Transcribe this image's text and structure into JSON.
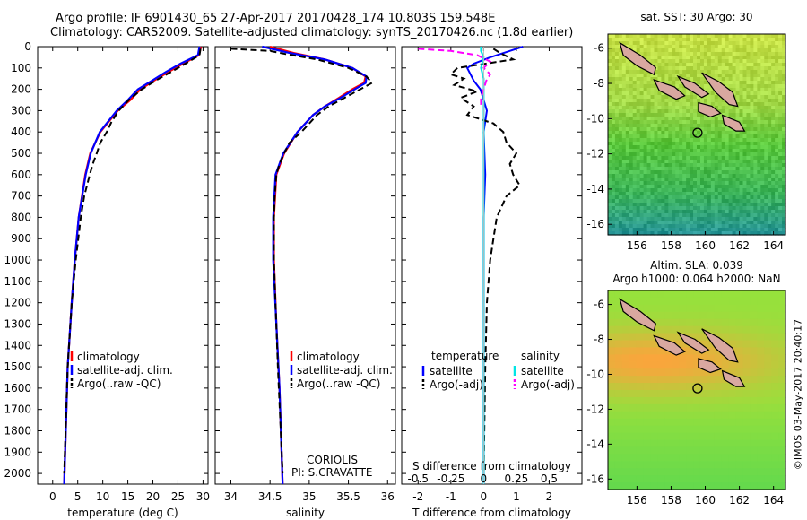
{
  "header": {
    "line1": "Argo profile: IF 6901430_65 27-Apr-2017 20170428_174 10.803S 159.548E",
    "line2": "Climatology: CARS2009. Satellite-adjusted climatology: synTS_20170426.nc (1.8d earlier)"
  },
  "stamp": "©IMOS 03-May-2017 20:40:17",
  "colors": {
    "climatology": "#ff0000",
    "satellite": "#0000ff",
    "argo": "#000000",
    "salinity_satellite": "#00e5e5",
    "salinity_argo": "#ff00ff",
    "land": "#d9a8a0"
  },
  "chart_data": [
    {
      "type": "line",
      "xlabel": "temperature (deg C)",
      "ylabel": "",
      "xlim": [
        -3,
        31
      ],
      "ylim": [
        2050,
        0
      ],
      "xticks": [
        "0",
        "5",
        "10",
        "15",
        "20",
        "25",
        "30"
      ],
      "yticks": [
        "0",
        "100",
        "200",
        "300",
        "400",
        "500",
        "600",
        "700",
        "800",
        "900",
        "1000",
        "1100",
        "1200",
        "1300",
        "1400",
        "1500",
        "1600",
        "1700",
        "1800",
        "1900",
        "2000"
      ],
      "legend": [
        "climatology",
        "satellite-adj. clim.",
        "Argo(..raw -QC)"
      ],
      "series": [
        {
          "name": "climatology",
          "depth": [
            0,
            40,
            80,
            120,
            160,
            200,
            250,
            300,
            400,
            500,
            600,
            800,
            1000,
            1200,
            1500,
            2050
          ],
          "values": [
            29.6,
            29.2,
            26.0,
            23.0,
            20.2,
            17.5,
            15.5,
            13.0,
            9.5,
            7.5,
            6.5,
            5.2,
            4.4,
            3.8,
            3.0,
            2.3
          ]
        },
        {
          "name": "satellite-adj. clim.",
          "depth": [
            0,
            40,
            80,
            120,
            160,
            200,
            250,
            300,
            400,
            500,
            600,
            800,
            1000,
            1200,
            1500,
            2050
          ],
          "values": [
            29.3,
            29.0,
            25.5,
            22.5,
            19.8,
            17.0,
            15.0,
            12.8,
            9.4,
            7.6,
            6.6,
            5.2,
            4.4,
            3.8,
            3.0,
            2.3
          ]
        },
        {
          "name": "Argo(..raw -QC)",
          "depth": [
            10,
            40,
            80,
            120,
            160,
            200,
            250,
            300,
            350,
            400,
            450,
            500,
            550,
            600,
            700,
            800,
            1000,
            1200,
            1500,
            2000
          ],
          "values": [
            29.5,
            29.3,
            26.5,
            23.5,
            20.5,
            17.8,
            15.2,
            13.2,
            11.8,
            10.8,
            9.5,
            8.8,
            8.0,
            7.4,
            6.3,
            5.6,
            4.6,
            3.8,
            3.0,
            2.3
          ]
        }
      ]
    },
    {
      "type": "line",
      "xlabel": "salinity",
      "ylabel": "",
      "xlim": [
        33.8,
        36.1
      ],
      "ylim": [
        2050,
        0
      ],
      "xticks": [
        "34",
        "34.5",
        "35",
        "35.5",
        "36"
      ],
      "legend": [
        "climatology",
        "satellite-adj. clim.",
        "Argo(..raw -QC)"
      ],
      "annotations": [
        "CORIOLIS",
        "PI: S.CRAVATTE"
      ],
      "series": [
        {
          "name": "climatology",
          "depth": [
            0,
            30,
            60,
            100,
            140,
            170,
            200,
            240,
            280,
            320,
            400,
            500,
            600,
            800,
            1000,
            1300,
            1600,
            2050
          ],
          "values": [
            34.5,
            34.8,
            35.2,
            35.55,
            35.72,
            35.7,
            35.55,
            35.38,
            35.2,
            35.05,
            34.85,
            34.68,
            34.58,
            34.55,
            34.55,
            34.58,
            34.62,
            34.66
          ]
        },
        {
          "name": "satellite-adj. clim.",
          "depth": [
            0,
            30,
            60,
            100,
            140,
            170,
            200,
            240,
            280,
            320,
            400,
            500,
            600,
            800,
            1000,
            1300,
            1600,
            2050
          ],
          "values": [
            34.4,
            34.75,
            35.2,
            35.55,
            35.73,
            35.72,
            35.58,
            35.4,
            35.2,
            35.05,
            34.85,
            34.67,
            34.57,
            34.54,
            34.54,
            34.58,
            34.62,
            34.66
          ]
        },
        {
          "name": "Argo(..raw -QC)",
          "depth": [
            10,
            20,
            35,
            60,
            100,
            140,
            170,
            200,
            240,
            280,
            320,
            360,
            400,
            450,
            500,
            550,
            600,
            650,
            700,
            800,
            1000,
            1500,
            2000
          ],
          "values": [
            34.0,
            34.5,
            34.7,
            35.1,
            35.5,
            35.73,
            35.8,
            35.65,
            35.45,
            35.25,
            35.1,
            35.0,
            34.9,
            34.75,
            34.68,
            34.62,
            34.58,
            34.57,
            34.56,
            34.55,
            34.55,
            34.6,
            34.66
          ]
        }
      ]
    },
    {
      "type": "line",
      "xlabel": "T difference from climatology",
      "x2label": "S difference from climatology",
      "xlim": [
        -2.5,
        3
      ],
      "ylim": [
        2050,
        0
      ],
      "xticks": [
        "-2",
        "-1",
        "0",
        "1",
        "2"
      ],
      "x2lim": [
        -0.625,
        0.75
      ],
      "x2ticks": [
        "-0.5",
        "-0.25",
        "0",
        "0.25",
        "0.5"
      ],
      "legend_titles": [
        "temperature",
        "salinity"
      ],
      "legend": [
        "satellite",
        "Argo(-adj)",
        "satellite",
        "Argo(-adj)"
      ],
      "series": [
        {
          "name": "temperature satellite",
          "depth": [
            0,
            20,
            50,
            80,
            100,
            130,
            160,
            200,
            250,
            300,
            400,
            600,
            800,
            1200,
            2050
          ],
          "values": [
            1.2,
            0.8,
            0.2,
            -0.3,
            -0.5,
            -0.4,
            -0.3,
            -0.1,
            0.0,
            0.1,
            0.0,
            0.05,
            0.0,
            0.0,
            0.0
          ]
        },
        {
          "name": "temperature Argo(-adj)",
          "depth": [
            10,
            30,
            60,
            100,
            130,
            150,
            180,
            210,
            240,
            280,
            320,
            360,
            400,
            450,
            500,
            550,
            600,
            650,
            700,
            800,
            900,
            1000,
            1200,
            1500,
            2000
          ],
          "values": [
            0.3,
            0.5,
            0.9,
            -0.8,
            -1.0,
            -0.6,
            -0.9,
            -0.2,
            -0.7,
            -0.3,
            -0.5,
            0.3,
            0.6,
            0.7,
            1.0,
            0.8,
            0.9,
            1.1,
            0.7,
            0.4,
            0.3,
            0.2,
            0.1,
            0.05,
            0.0
          ]
        },
        {
          "name": "salinity satellite",
          "depth": [
            0,
            20,
            50,
            100,
            150,
            200,
            300,
            600,
            1000,
            2050
          ],
          "values": [
            -0.02,
            -0.02,
            0.0,
            -0.02,
            0.0,
            0.0,
            0.0,
            0.0,
            0.0,
            0.0
          ]
        },
        {
          "name": "salinity Argo(-adj)",
          "depth": [
            10,
            20,
            40,
            70,
            100,
            130,
            160,
            200,
            240,
            280
          ],
          "values": [
            -0.5,
            -0.25,
            -0.05,
            0.05,
            0.0,
            0.05,
            0.02,
            0.0,
            -0.02,
            -0.02
          ]
        }
      ]
    },
    {
      "type": "heatmap",
      "title": "sat. SST: 30 Argo: 30",
      "xlim": [
        154.3,
        164.7
      ],
      "ylim": [
        -16.6,
        -5.2
      ],
      "xticks": [
        "156",
        "158",
        "160",
        "162",
        "164"
      ],
      "yticks": [
        "-6",
        "-8",
        "-10",
        "-12",
        "-14",
        "-16"
      ],
      "marker": {
        "lon": 159.548,
        "lat": -10.803
      }
    },
    {
      "type": "heatmap",
      "title": "Altim. SLA: 0.039",
      "subtitle": "Argo h1000: 0.064 h2000: NaN",
      "xlim": [
        154.3,
        164.7
      ],
      "ylim": [
        -16.6,
        -5.2
      ],
      "xticks": [
        "156",
        "158",
        "160",
        "162",
        "164"
      ],
      "yticks": [
        "-6",
        "-8",
        "-10",
        "-12",
        "-14",
        "-16"
      ],
      "marker": {
        "lon": 159.548,
        "lat": -10.803
      }
    }
  ]
}
